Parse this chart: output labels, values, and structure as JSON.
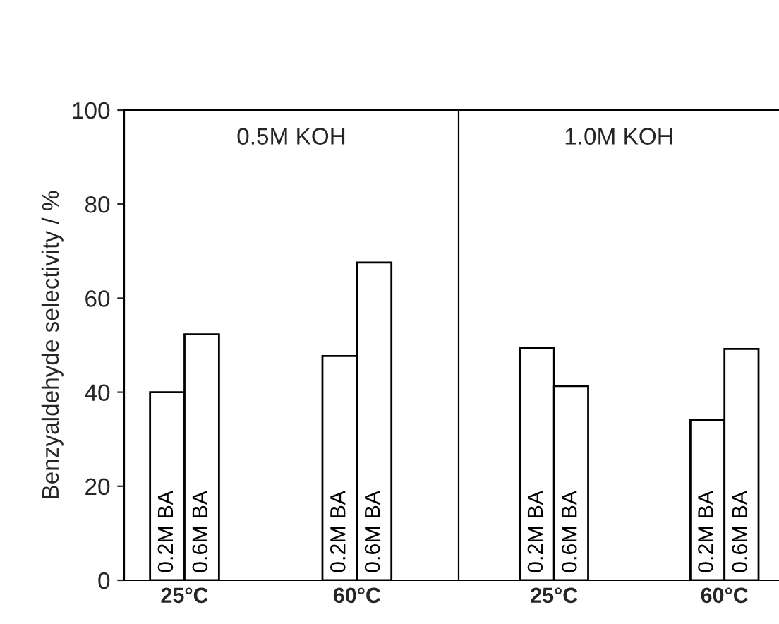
{
  "chart_data": [
    {
      "type": "bar",
      "ylabel": "Benzyaldehyde selectivity / %",
      "categories": [
        "25°C",
        "60°C"
      ],
      "ylim": [
        0,
        100
      ],
      "yticks": [
        0,
        20,
        40,
        60,
        80,
        100
      ],
      "annotations": [
        "0.5M KOH"
      ],
      "series": [
        {
          "name": "0.2M BA",
          "color": "#ffffff",
          "values": [
            40,
            47.7
          ]
        },
        {
          "name": "0.6M BA",
          "color": "#ffffff",
          "values": [
            52.3,
            67.6
          ]
        }
      ]
    },
    {
      "type": "bar",
      "categories": [
        "25°C",
        "60°C"
      ],
      "ylim": [
        0,
        100
      ],
      "tick_labels": "x",
      "annotations": [
        "1.0M KOH"
      ],
      "series": [
        {
          "name": "0.2M BA",
          "color": "#ffffff",
          "values": [
            49.4,
            34.1
          ]
        },
        {
          "name": "0.6M BA",
          "color": "#ffffff",
          "values": [
            41.3,
            49.2
          ]
        }
      ]
    }
  ]
}
